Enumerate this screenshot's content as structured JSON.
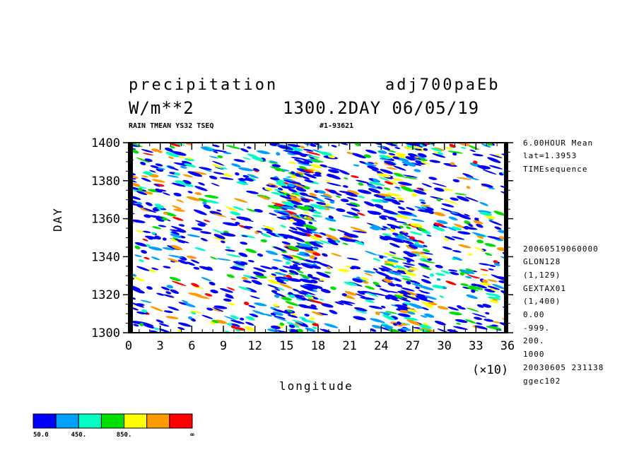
{
  "header": {
    "var_name": "precipitation",
    "units": "W/m**2",
    "experiment": "adj700paEb",
    "timestamp": "1300.2DAY 06/05/19",
    "subtitle_left": "RAIN TMEAN YS32 TSEQ",
    "subtitle_right": "#1-93621"
  },
  "meta_top": [
    "6.00HOUR Mean",
    "lat=1.3953",
    "TIMEsequence"
  ],
  "meta_bottom": [
    "20060519060000",
    "GLON128",
    "(1,129)",
    "GEXTAX01",
    "(1,400)",
    "0.00",
    "-999.",
    "200.",
    "1000",
    "20030605 231138",
    "ggec102"
  ],
  "colorbar": {
    "colors": [
      "#0000ff",
      "#00a0ff",
      "#00ffc0",
      "#00e000",
      "#ffff00",
      "#ff9900",
      "#ff0000"
    ],
    "labels": [
      "50.0",
      "450.",
      "850.",
      "∞"
    ]
  },
  "chart_data": {
    "type": "heatmap",
    "title": "precipitation",
    "xlabel": "longitude",
    "ylabel": "DAY",
    "x_multiplier": "(×10)",
    "xlim": [
      0,
      36
    ],
    "ylim": [
      1300,
      1400
    ],
    "x_ticks": [
      "0",
      "3",
      "6",
      "9",
      "12",
      "15",
      "18",
      "21",
      "24",
      "27",
      "30",
      "33",
      "36"
    ],
    "y_ticks": [
      "1300",
      "1320",
      "1340",
      "1360",
      "1380",
      "1400"
    ],
    "levels": [
      50,
      450,
      850
    ],
    "note": "Hovmoller diagram of precipitation; contour-filled pattern is approximated"
  }
}
